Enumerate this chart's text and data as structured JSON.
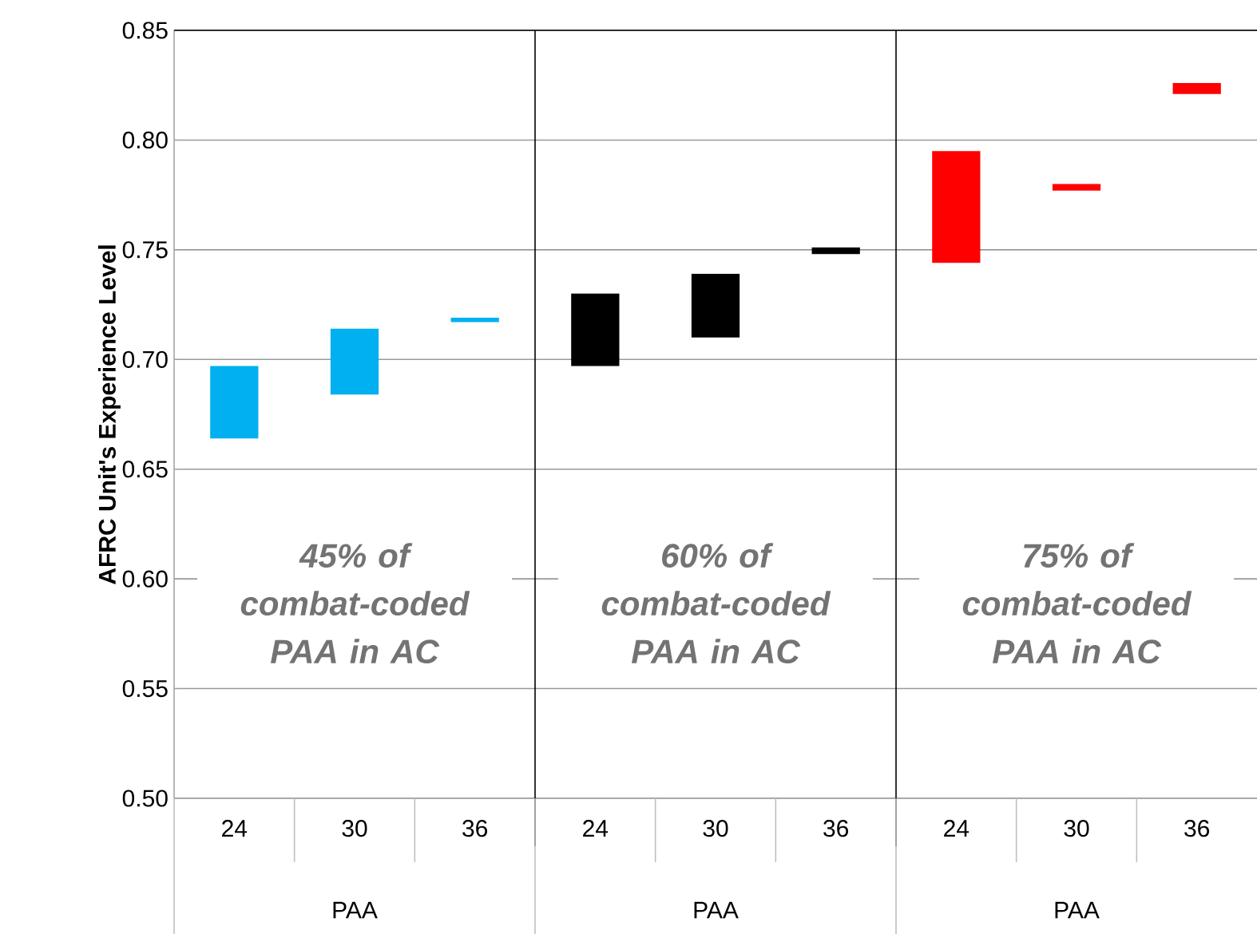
{
  "chart_data": {
    "type": "bar",
    "ylabel": "AFRC Unit's Experience Level",
    "categories": [
      "24",
      "30",
      "36",
      "24",
      "30",
      "36",
      "24",
      "30",
      "36"
    ],
    "base": [
      0.664,
      0.684,
      0.717,
      0.697,
      0.71,
      0.748,
      0.744,
      0.777,
      0.821
    ],
    "values": [
      0.033,
      0.03,
      0.002,
      0.033,
      0.029,
      0.003,
      0.051,
      0.003,
      0.005
    ],
    "colors": [
      "#00b0f0",
      "#00b0f0",
      "#00b0f0",
      "#000000",
      "#000000",
      "#000000",
      "#ff0000",
      "#ff0000",
      "#ff0000"
    ],
    "ylim": [
      0.5,
      0.85
    ],
    "yticks": [
      {
        "value": 0.5,
        "label": "0.50"
      },
      {
        "value": 0.55,
        "label": "0.55"
      },
      {
        "value": 0.6,
        "label": "0.60"
      },
      {
        "value": 0.65,
        "label": "0.65"
      },
      {
        "value": 0.7,
        "label": "0.70"
      },
      {
        "value": 0.75,
        "label": "0.75"
      },
      {
        "value": 0.8,
        "label": "0.80"
      },
      {
        "value": 0.85,
        "label": "0.85"
      }
    ],
    "grid": "y",
    "annotations": [
      "45% of combat-coded PAA in AC",
      "60% of combat-coded PAA in AC",
      "75% of combat-coded PAA in AC",
      "PAA",
      "PAA",
      "PAA"
    ]
  }
}
